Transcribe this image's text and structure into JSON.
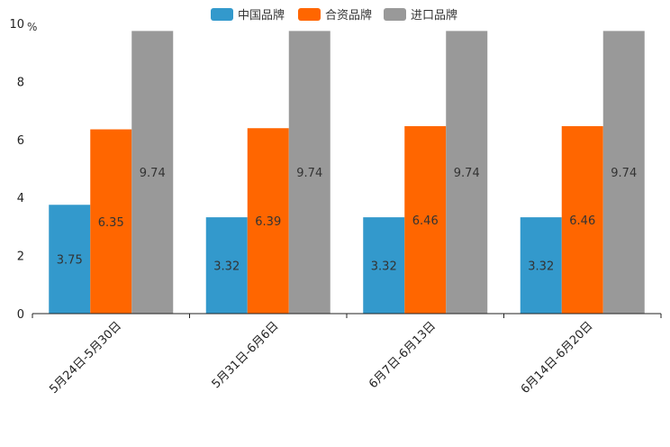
{
  "chart_data": {
    "type": "bar",
    "title": "",
    "xlabel": "",
    "ylabel": "%",
    "ylim": [
      0,
      10
    ],
    "yticks": [
      0,
      2,
      4,
      6,
      8,
      10
    ],
    "grid": false,
    "legend_position": "top-center",
    "categories": [
      "5月24日-5月30日",
      "5月31日-6月6日",
      "6月7日-6月13日",
      "6月14日-6月20日"
    ],
    "series": [
      {
        "name": "中国品牌",
        "color": "#3399cc",
        "values": [
          3.75,
          3.32,
          3.32,
          3.32
        ]
      },
      {
        "name": "合资品牌",
        "color": "#ff6600",
        "values": [
          6.35,
          6.39,
          6.46,
          6.46
        ]
      },
      {
        "name": "进口品牌",
        "color": "#999999",
        "values": [
          9.74,
          9.74,
          9.74,
          9.74
        ]
      }
    ]
  }
}
